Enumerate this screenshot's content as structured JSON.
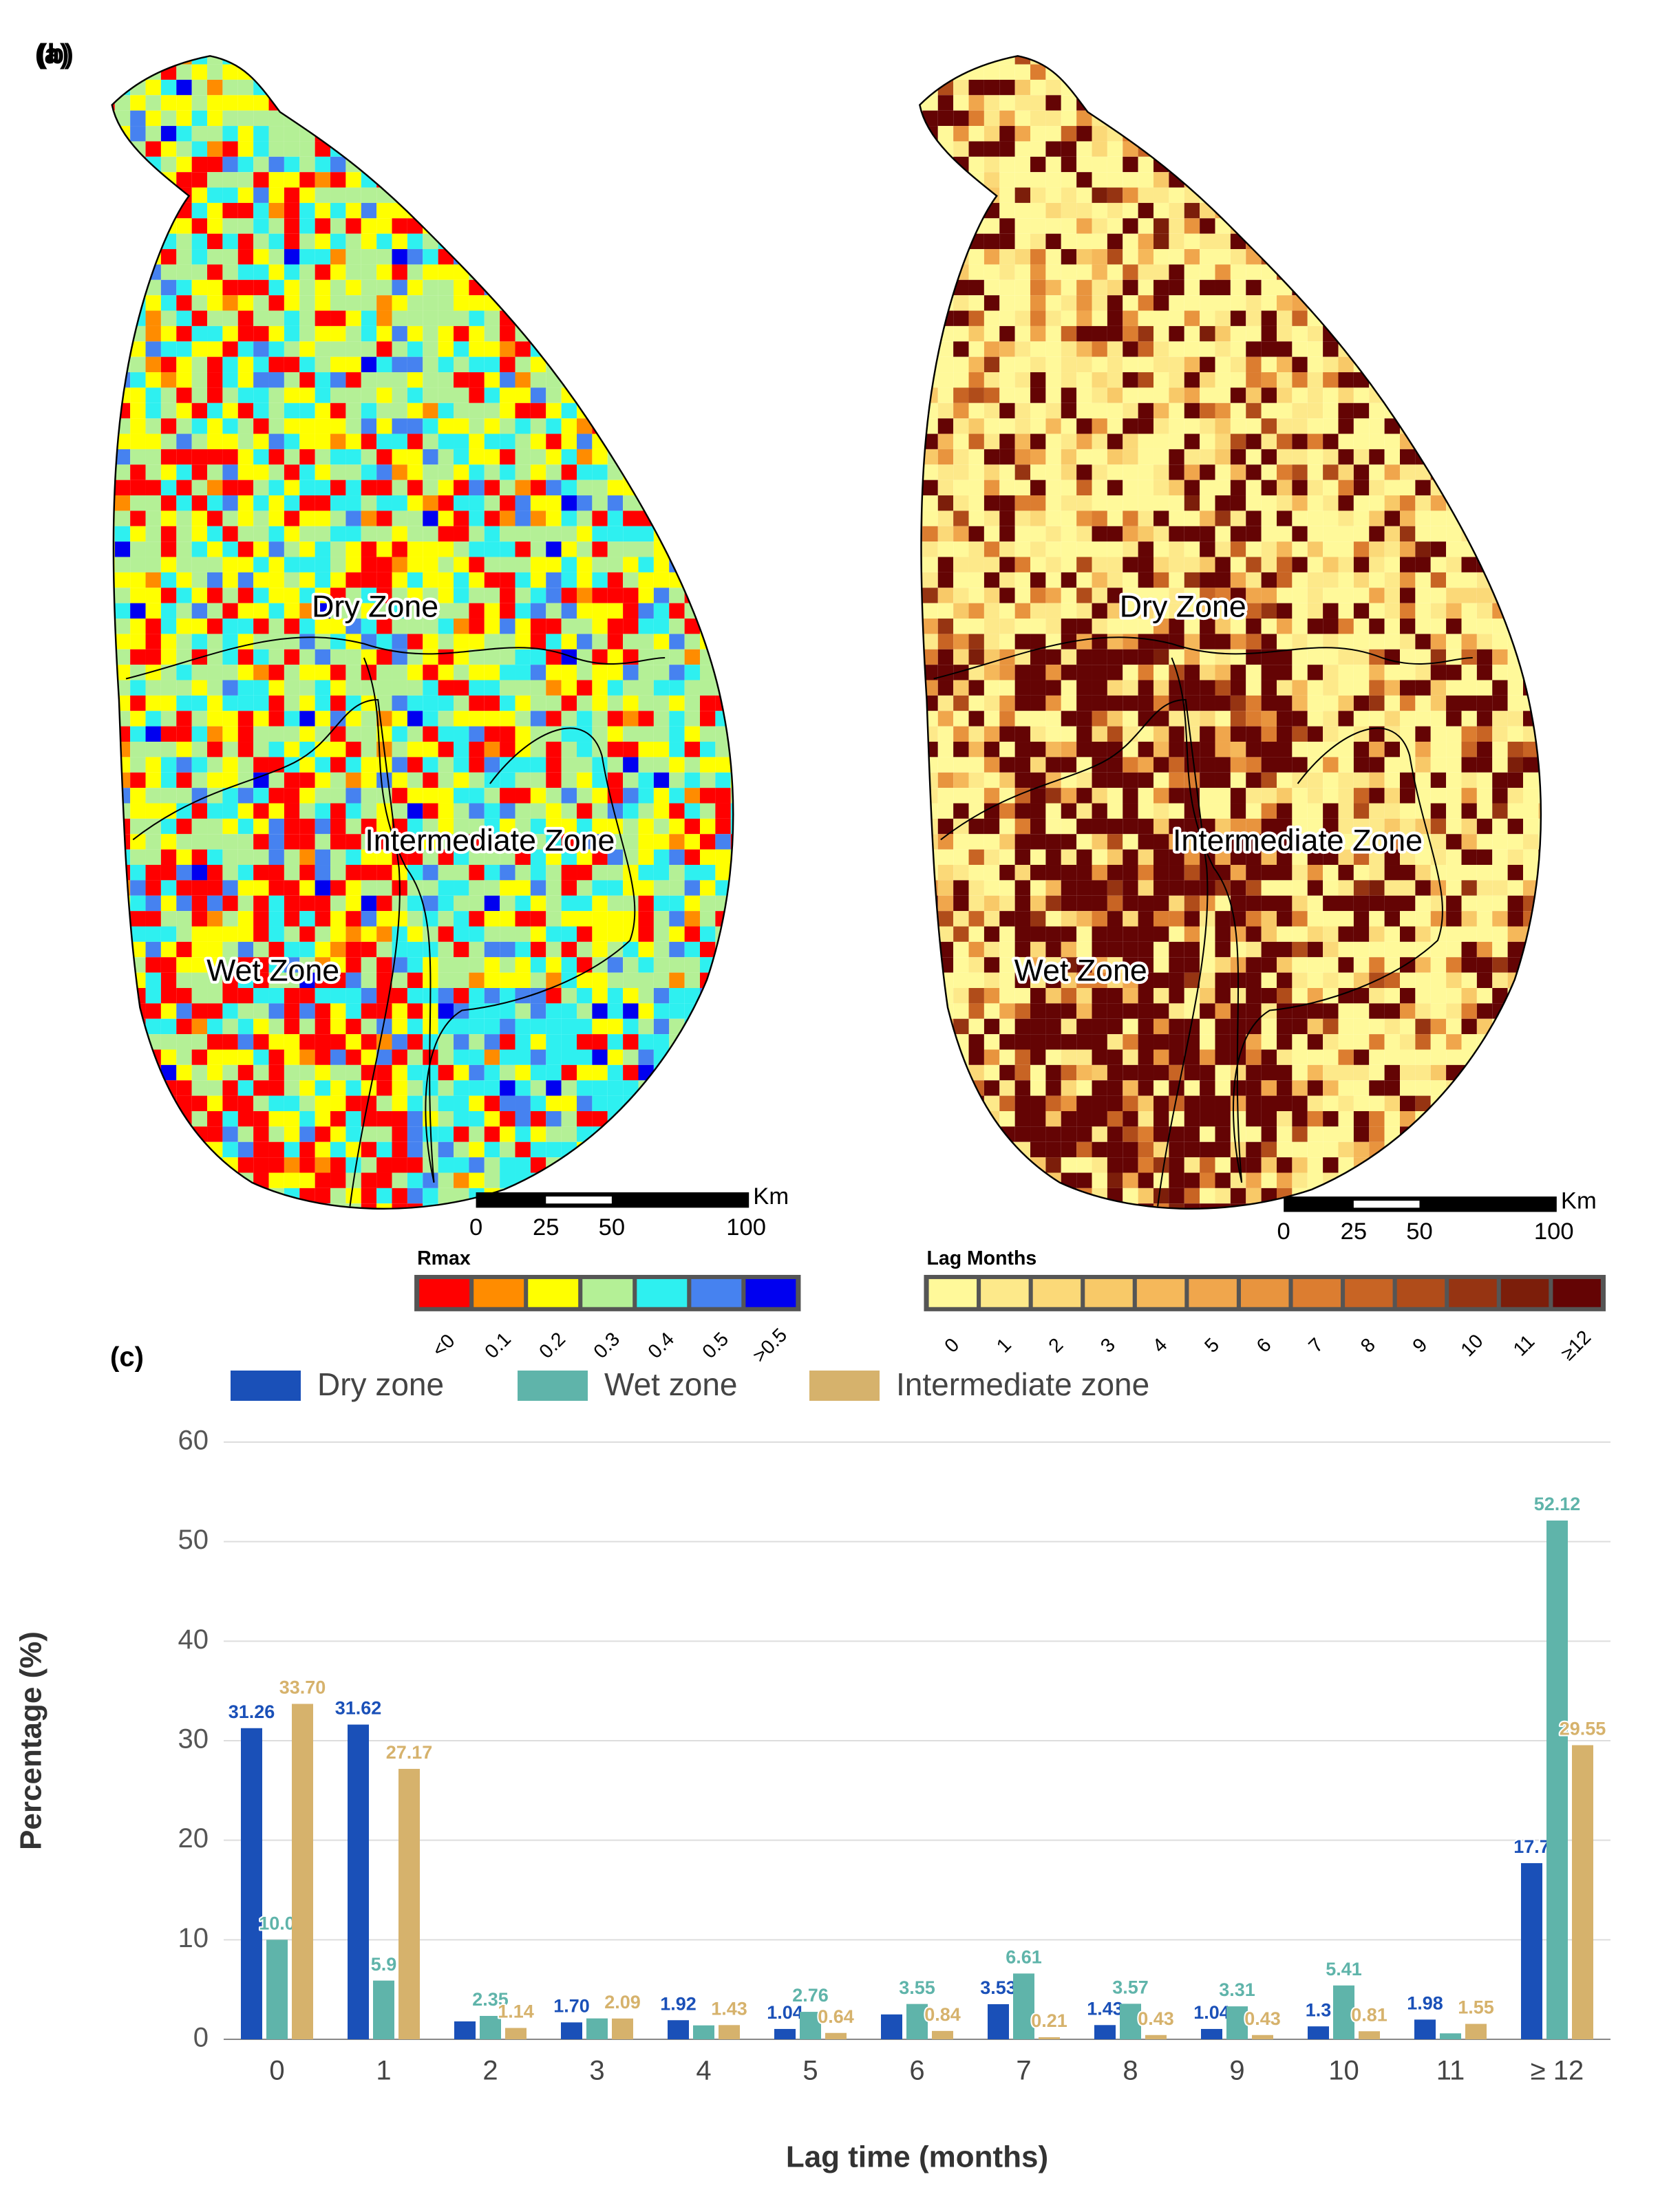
{
  "maps": [
    {
      "panel": "(a)",
      "zones": [
        "Dry Zone",
        "Intermediate Zone",
        "Wet Zone"
      ],
      "scale_bar": {
        "unit": "Km",
        "ticks": [
          0,
          25,
          50,
          100
        ]
      },
      "legend": {
        "title": "Rmax",
        "labels": [
          "<0",
          "0.1",
          "0.2",
          "0.3",
          "0.4",
          "0.5",
          ">0.5"
        ],
        "colors": [
          "#ff0000",
          "#ff8c00",
          "#ffff00",
          "#b4f096",
          "#2ef0f0",
          "#4682f0",
          "#0000f0"
        ]
      }
    },
    {
      "panel": "(b)",
      "zones": [
        "Dry Zone",
        "Intermediate Zone",
        "Wet Zone"
      ],
      "scale_bar": {
        "unit": "Km",
        "ticks": [
          0,
          25,
          50,
          100
        ]
      },
      "legend": {
        "title": "Lag Months",
        "labels": [
          "0",
          "1",
          "2",
          "3",
          "4",
          "5",
          "6",
          "7",
          "8",
          "9",
          "10",
          "11",
          "≥12"
        ],
        "colors": [
          "#fff99a",
          "#fde98a",
          "#fbd978",
          "#f8c968",
          "#f5b85a",
          "#f0a64c",
          "#e8943e",
          "#dc7d30",
          "#c86424",
          "#b04c1a",
          "#963412",
          "#7c1e0a",
          "#640404"
        ]
      }
    }
  ],
  "chart_data": {
    "type": "bar",
    "panel": "(c)",
    "x_label": "Lag time (months)",
    "y_label": "Percentage (%)",
    "categories": [
      "0",
      "1",
      "2",
      "3",
      "4",
      "5",
      "6",
      "7",
      "8",
      "9",
      "10",
      "11",
      "≥ 12"
    ],
    "series": [
      {
        "name": "Dry zone",
        "color": "#1a50b8",
        "values": [
          31.26,
          31.62,
          1.8,
          1.7,
          1.92,
          1.04,
          2.5,
          3.53,
          1.43,
          1.04,
          1.3,
          1.98,
          17.7
        ],
        "value_labels": [
          "31.26",
          "31.62",
          null,
          "1.70",
          "1.92",
          "1.04",
          null,
          "3.53",
          "1.43",
          "1.04",
          "1.3",
          "1.98",
          "17.7"
        ]
      },
      {
        "name": "Wet zone",
        "color": "#5fb4aa",
        "values": [
          10.0,
          5.9,
          2.35,
          2.1,
          1.4,
          2.76,
          3.55,
          6.61,
          3.57,
          3.31,
          5.41,
          0.6,
          52.12
        ],
        "value_labels": [
          "10.0",
          "5.9",
          "2.35",
          null,
          null,
          "2.76",
          "3.55",
          "6.61",
          "3.57",
          "3.31",
          "5.41",
          null,
          "52.12"
        ]
      },
      {
        "name": "Intermediate zone",
        "color": "#d6b26c",
        "values": [
          33.7,
          27.17,
          1.14,
          2.09,
          1.43,
          0.64,
          0.84,
          0.21,
          0.43,
          0.43,
          0.81,
          1.55,
          29.55
        ],
        "value_labels": [
          "33.70",
          "27.17",
          "1.14",
          "2.09",
          "1.43",
          "0.64",
          "0.84",
          "0.21",
          "0.43",
          "0.43",
          "0.81",
          "1.55",
          "29.55"
        ]
      }
    ],
    "ylim": [
      0,
      60
    ],
    "yticks": [
      0,
      10,
      20,
      30,
      40,
      50,
      60
    ],
    "grid": true
  }
}
